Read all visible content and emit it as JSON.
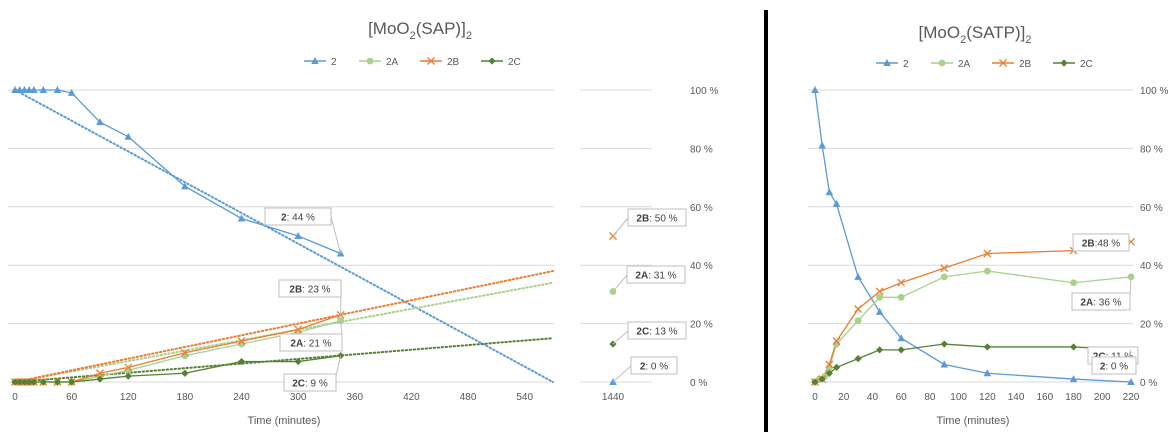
{
  "chart_data": [
    {
      "type": "line",
      "title_main": "[MoO",
      "title_sub1": "2",
      "title_mid": "(SAP)]",
      "title_sub2": "2",
      "xlabel": "Time (minutes)",
      "xticks": [
        "0",
        "60",
        "120",
        "180",
        "240",
        "300",
        "360",
        "420",
        "480",
        "540"
      ],
      "break_tick": "1440",
      "yticks": [
        "0 %",
        "20 %",
        "40 %",
        "60 %",
        "80 %",
        "100 %"
      ],
      "xlim": [
        0,
        570
      ],
      "ylim": [
        0,
        100
      ],
      "grid": true,
      "legend_position": "top",
      "series": [
        {
          "name": "2",
          "color": "#5b9bd5",
          "marker": "triangle",
          "x": [
            0,
            5,
            10,
            15,
            20,
            30,
            45,
            60,
            90,
            120,
            180,
            240,
            300,
            345
          ],
          "y": [
            100,
            100,
            100,
            100,
            100,
            100,
            100,
            99,
            89,
            84,
            67,
            56,
            50,
            44
          ],
          "break_x": 1440,
          "break_y": 0
        },
        {
          "name": "2A",
          "color": "#a9d18e",
          "marker": "circle",
          "x": [
            0,
            5,
            10,
            15,
            20,
            30,
            45,
            60,
            90,
            120,
            180,
            240,
            300,
            345
          ],
          "y": [
            0,
            0,
            0,
            0,
            0,
            0,
            0,
            0,
            2,
            4,
            9,
            13,
            17,
            21
          ],
          "break_x": 1440,
          "break_y": 31
        },
        {
          "name": "2B",
          "color": "#ed7d31",
          "marker": "x",
          "x": [
            0,
            5,
            10,
            15,
            20,
            30,
            45,
            60,
            90,
            120,
            180,
            240,
            300,
            345
          ],
          "y": [
            0,
            0,
            0,
            0,
            0,
            0,
            0,
            0,
            3,
            5,
            10,
            14,
            18,
            23
          ],
          "break_x": 1440,
          "break_y": 50
        },
        {
          "name": "2C",
          "color": "#548235",
          "marker": "diamond",
          "x": [
            0,
            5,
            10,
            15,
            20,
            30,
            45,
            60,
            90,
            120,
            180,
            240,
            300,
            345
          ],
          "y": [
            0,
            0,
            0,
            0,
            0,
            0,
            0,
            0,
            1,
            2,
            3,
            7,
            7,
            9
          ],
          "break_x": 1440,
          "break_y": 13
        }
      ],
      "trendlines": [
        {
          "series": "2",
          "x": [
            0,
            570
          ],
          "y": [
            100,
            0
          ]
        },
        {
          "series": "2A",
          "x": [
            0,
            570
          ],
          "y": [
            0,
            34
          ]
        },
        {
          "series": "2B",
          "x": [
            0,
            570
          ],
          "y": [
            0,
            38
          ]
        },
        {
          "series": "2C",
          "x": [
            0,
            570
          ],
          "y": [
            0,
            15
          ]
        }
      ],
      "annotations": [
        {
          "series_label": "2",
          "value": ": 44 %"
        },
        {
          "series_label": "2B",
          "value": ": 23 %"
        },
        {
          "series_label": "2A",
          "value": ": 21 %"
        },
        {
          "series_label": "2C",
          "value": ": 9 %"
        },
        {
          "series_label": "2B",
          "value": ": 50 %"
        },
        {
          "series_label": "2A",
          "value": ": 31 %"
        },
        {
          "series_label": "2C",
          "value": ": 13 %"
        },
        {
          "series_label": "2",
          "value": ": 0 %"
        }
      ]
    },
    {
      "type": "line",
      "title_main": "[MoO",
      "title_sub1": "2",
      "title_mid": "(SATP)]",
      "title_sub2": "2",
      "xlabel": "Time (minutes)",
      "xticks": [
        "0",
        "20",
        "40",
        "60",
        "80",
        "100",
        "120",
        "140",
        "160",
        "180",
        "200",
        "220"
      ],
      "yticks": [
        "0 %",
        "20 %",
        "40 %",
        "60 %",
        "80 %",
        "100 %"
      ],
      "xlim": [
        0,
        220
      ],
      "ylim": [
        0,
        100
      ],
      "grid": true,
      "legend_position": "top",
      "series": [
        {
          "name": "2",
          "color": "#5b9bd5",
          "marker": "triangle",
          "x": [
            0,
            5,
            10,
            15,
            30,
            45,
            60,
            90,
            120,
            180,
            220
          ],
          "y": [
            100,
            81,
            65,
            61,
            36,
            24,
            15,
            6,
            3,
            1,
            0
          ]
        },
        {
          "name": "2A",
          "color": "#a9d18e",
          "marker": "circle",
          "x": [
            0,
            3,
            7,
            10,
            15,
            30,
            45,
            60,
            90,
            120,
            180,
            220
          ],
          "y": [
            0,
            1,
            2,
            5,
            13,
            21,
            29,
            29,
            36,
            38,
            34,
            36
          ]
        },
        {
          "name": "2B",
          "color": "#ed7d31",
          "marker": "x",
          "x": [
            0,
            5,
            10,
            15,
            30,
            45,
            60,
            90,
            120,
            180,
            220
          ],
          "y": [
            0,
            1,
            6,
            14,
            25,
            31,
            34,
            39,
            44,
            45,
            48
          ]
        },
        {
          "name": "2C",
          "color": "#548235",
          "marker": "diamond",
          "x": [
            0,
            5,
            10,
            15,
            30,
            45,
            60,
            90,
            120,
            180,
            220
          ],
          "y": [
            0,
            1,
            3,
            5,
            8,
            11,
            11,
            13,
            12,
            12,
            11
          ]
        }
      ],
      "annotations": [
        {
          "series_label": "2B",
          "value": ":48 %"
        },
        {
          "series_label": "2A",
          "value": ": 36 %"
        },
        {
          "series_label": "2C",
          "value": ": 11 %"
        },
        {
          "series_label": "2",
          "value": ": 0 %"
        }
      ]
    }
  ]
}
